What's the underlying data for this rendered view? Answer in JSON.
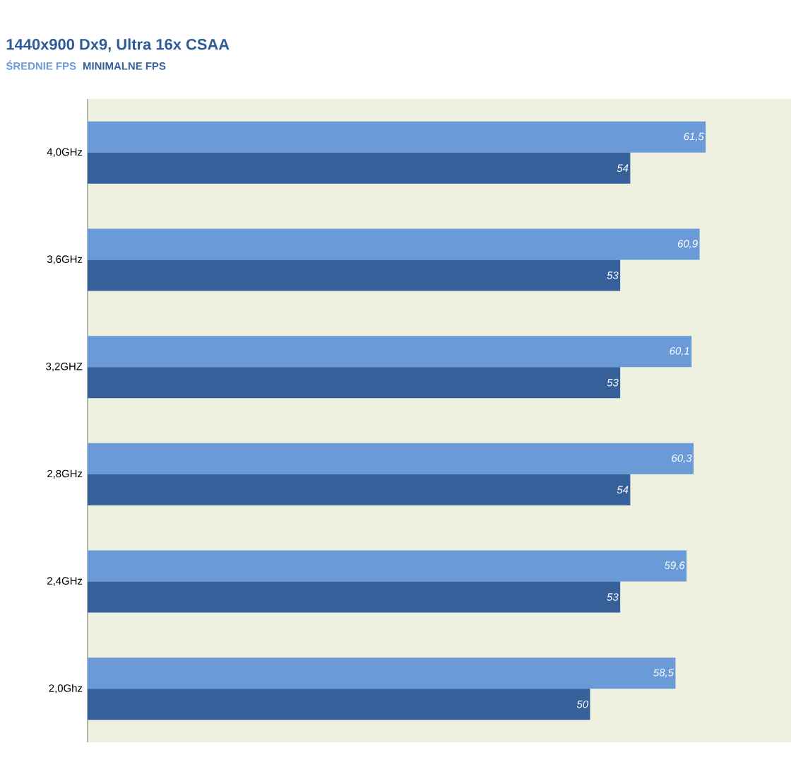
{
  "chart_data": {
    "type": "bar",
    "orientation": "horizontal",
    "title": "1440x900 Dx9, Ultra 16x CSAA",
    "categories": [
      "4,0GHz",
      "3,6GHz",
      "3,2GHZ",
      "2,8GHz",
      "2,4GHz",
      "2,0Ghz"
    ],
    "series": [
      {
        "name": "ŚREDNIE FPS",
        "color": "#6a9ad8",
        "values": [
          61.5,
          60.9,
          60.1,
          60.3,
          59.6,
          58.5
        ],
        "value_labels": [
          "61,5",
          "60,9",
          "60,1",
          "60,3",
          "59,6",
          "58,5"
        ]
      },
      {
        "name": "MINIMALNE FPS",
        "color": "#35609a",
        "values": [
          54,
          53,
          53,
          54,
          53,
          50
        ],
        "value_labels": [
          "54",
          "53",
          "53",
          "54",
          "53",
          "50"
        ]
      }
    ],
    "xlim": [
      0,
      70
    ],
    "tick_labels": "y",
    "grid": false,
    "legend": "top"
  }
}
